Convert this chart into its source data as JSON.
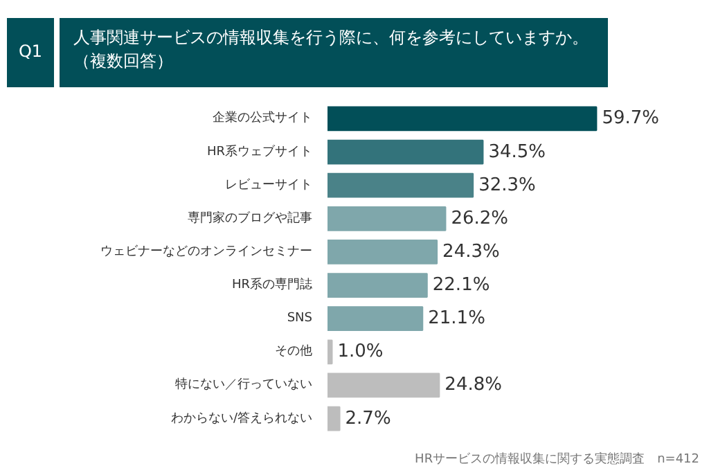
{
  "chart_data": {
    "type": "bar",
    "orientation": "horizontal",
    "title": "人事関連サービスの情報収集を行う際に、何を参考にしていますか。（複数回答）",
    "categories": [
      "企業の公式サイト",
      "HR系ウェブサイト",
      "レビューサイト",
      "専門家のブログや記事",
      "ウェビナーなどのオンラインセミナー",
      "HR系の専門誌",
      "SNS",
      "その他",
      "特にない／行っていない",
      "わからない/答えられない"
    ],
    "values": [
      59.7,
      34.5,
      32.3,
      26.2,
      24.3,
      22.1,
      21.1,
      1.0,
      24.8,
      2.7
    ],
    "colors": [
      "#024f58",
      "#33737b",
      "#4a8288",
      "#7fa7ab",
      "#7fa7ab",
      "#7fa7ab",
      "#7fa7ab",
      "#bdbdbd",
      "#bdbdbd",
      "#bdbdbd"
    ],
    "value_labels": [
      "59.7%",
      "34.5%",
      "32.3%",
      "26.2%",
      "24.3%",
      "22.1%",
      "21.1%",
      "1.0%",
      "24.8%",
      "2.7%"
    ],
    "annotations": [
      "Q1",
      "HRサービスの情報収集に関する実態調査　n=412"
    ]
  }
}
